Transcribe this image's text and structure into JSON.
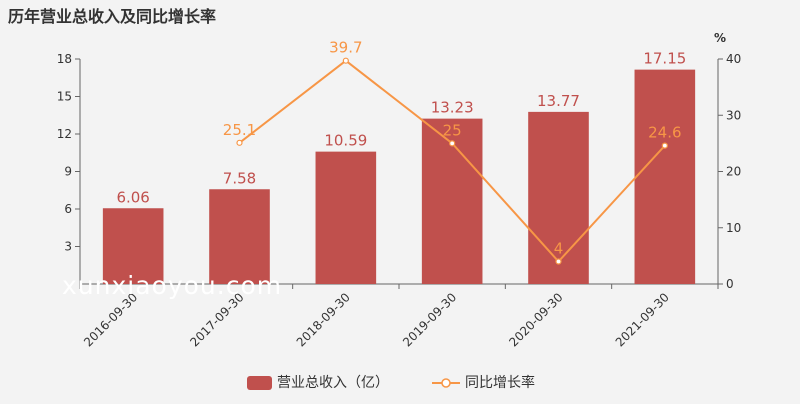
{
  "chart_data": {
    "type": "bar",
    "title": "历年营业总收入及同比增长率",
    "categories": [
      "2016-09-30",
      "2017-09-30",
      "2018-09-30",
      "2019-09-30",
      "2020-09-30",
      "2021-09-30"
    ],
    "series": [
      {
        "name": "营业总收入（亿）",
        "type": "bar",
        "axis": "left",
        "color": "#c0504d",
        "values": [
          6.06,
          7.58,
          10.59,
          13.23,
          13.77,
          17.15
        ],
        "labels": [
          "6.06",
          "7.58",
          "10.59",
          "13.23",
          "13.77",
          "17.15"
        ]
      },
      {
        "name": "同比增长率",
        "type": "line",
        "axis": "right",
        "color": "#f79646",
        "values": [
          null,
          25.1,
          39.7,
          25,
          4,
          24.6
        ],
        "labels": [
          "",
          "25.1",
          "39.7",
          "25",
          "4",
          "24.6"
        ]
      }
    ],
    "y_left": {
      "min": 0,
      "max": 18,
      "ticks": [
        "3",
        "6",
        "9",
        "12",
        "15",
        "18"
      ]
    },
    "y_right": {
      "min": 0,
      "max": 40,
      "label": "%",
      "ticks": [
        "0",
        "10",
        "20",
        "30",
        "40"
      ]
    },
    "grid": false,
    "legend_position": "bottom-center",
    "watermark": "xunxiaoyou.com"
  }
}
